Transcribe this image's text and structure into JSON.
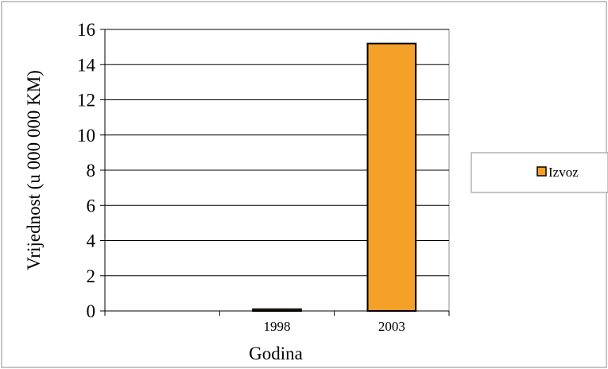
{
  "chart_data": {
    "type": "bar",
    "categories": [
      "1998",
      "2003"
    ],
    "series": [
      {
        "name": "Izvoz",
        "values": [
          0.1,
          15.2
        ],
        "color": "#f5a028"
      }
    ],
    "xlabel": "Godina",
    "ylabel": "Vrijednost (u 000 000 KM)",
    "ylim": [
      0,
      16
    ],
    "yticks": [
      "0",
      "2",
      "4",
      "6",
      "8",
      "10",
      "12",
      "14",
      "16"
    ],
    "grid": true,
    "legend_position": "right",
    "empty_leading_category": true
  }
}
